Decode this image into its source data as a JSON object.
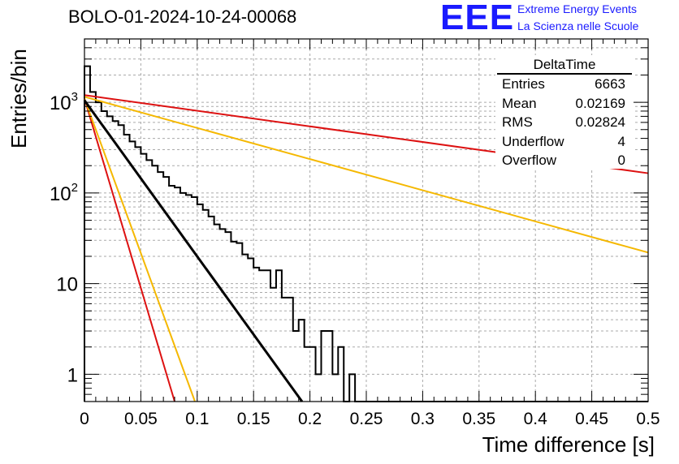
{
  "title": "BOLO-01-2024-10-24-00068",
  "brand": {
    "logo": "EEE",
    "line1": "Extreme Energy Events",
    "line2": "La Scienza nelle Scuole",
    "color": "#1a1aff"
  },
  "stats_box": {
    "name": "DeltaTime",
    "rows": [
      {
        "label": "Entries",
        "value": "6663"
      },
      {
        "label": "Mean",
        "value": "0.02169"
      },
      {
        "label": "RMS",
        "value": "0.02824"
      },
      {
        "label": "Underflow",
        "value": "4"
      },
      {
        "label": "Overflow",
        "value": "0"
      }
    ]
  },
  "chart_data": {
    "type": "line",
    "title": "BOLO-01-2024-10-24-00068",
    "xlabel": "Time difference [s]",
    "ylabel": "Entries/bin",
    "xlim": [
      0,
      0.5
    ],
    "ylim": [
      0.5,
      5000
    ],
    "yscale": "log",
    "grid": true,
    "x_ticks": [
      "0",
      "0.05",
      "0.1",
      "0.15",
      "0.2",
      "0.25",
      "0.3",
      "0.35",
      "0.4",
      "0.45",
      "0.5"
    ],
    "y_ticks": [
      {
        "base": "1",
        "exp": ""
      },
      {
        "base": "10",
        "exp": ""
      },
      {
        "base": "10",
        "exp": "2"
      },
      {
        "base": "10",
        "exp": "3"
      }
    ],
    "histogram": {
      "bin_width": 0.005,
      "color": "#000000",
      "values": [
        2500,
        1300,
        1000,
        800,
        700,
        620,
        560,
        440,
        370,
        320,
        270,
        230,
        200,
        170,
        150,
        120,
        115,
        100,
        95,
        90,
        75,
        65,
        55,
        45,
        40,
        37,
        29,
        28,
        21,
        19,
        15,
        14,
        14,
        9,
        14,
        7,
        7,
        3,
        4,
        2,
        2,
        1,
        3,
        3,
        1,
        2,
        0.4,
        1,
        0.4,
        0.4,
        0.4,
        0.4,
        0.4,
        0.4,
        0.4,
        0.4,
        0.4,
        0.4,
        0.4,
        0.4,
        0.4,
        0.4,
        0.4,
        0.4,
        0.4,
        0.4,
        0.4,
        0.4,
        0.4,
        0.4,
        0.4,
        0.4,
        0.4,
        0.4,
        0.4,
        0.4,
        0.4,
        0.4,
        0.4,
        0.4,
        0.4,
        0.4,
        0.4,
        0.4,
        0.4,
        0.4,
        0.4,
        0.4,
        0.4,
        0.4,
        0.4,
        0.4,
        0.4,
        0.4,
        0.4,
        0.4,
        0.4,
        0.4,
        0.4,
        0.4
      ]
    },
    "fits": [
      {
        "color": "#dd1111",
        "x_from": 0.0,
        "x_to": 0.5,
        "y_from": 1200,
        "y_to": 165
      },
      {
        "color": "#f5b800",
        "x_from": 0.0,
        "x_to": 0.5,
        "y_from": 1150,
        "y_to": 22
      },
      {
        "color": "#dd1111",
        "x_from": 0.0,
        "x_to": 0.08,
        "y_from": 1100,
        "y_to": 0.5
      },
      {
        "color": "#f5b800",
        "x_from": 0.0,
        "x_to": 0.098,
        "y_from": 1100,
        "y_to": 0.5
      },
      {
        "color": "#000000",
        "x_from": 0.0,
        "x_to": 0.193,
        "y_from": 1050,
        "y_to": 0.5
      }
    ]
  }
}
